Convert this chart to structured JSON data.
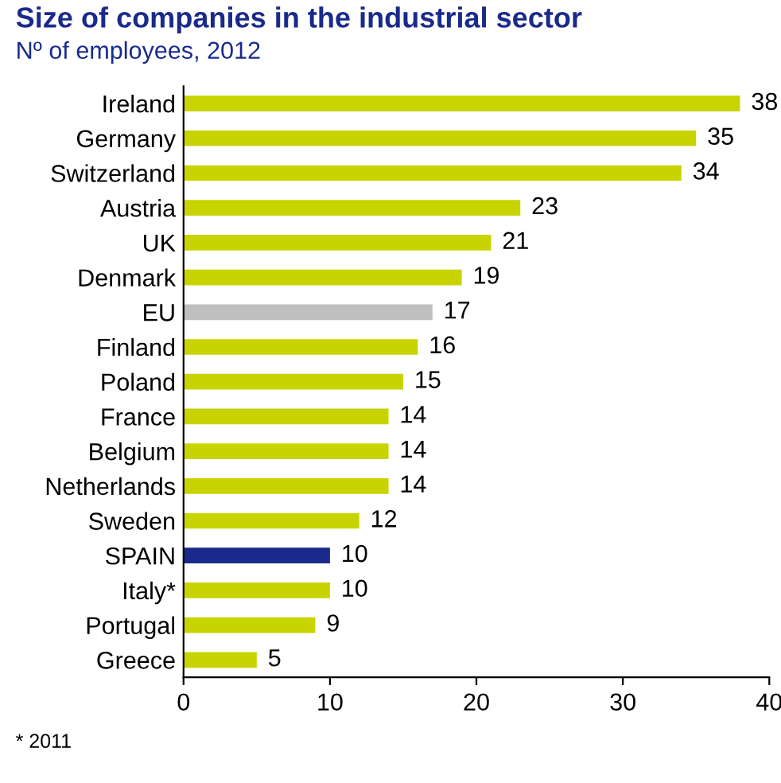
{
  "chart_data": {
    "type": "bar",
    "orientation": "horizontal",
    "title": "Size of companies in the industrial sector",
    "subtitle": "Nº of employees, 2012",
    "categories": [
      "Ireland",
      "Germany",
      "Switzerland",
      "Austria",
      "UK",
      "Denmark",
      "EU",
      "Finland",
      "Poland",
      "France",
      "Belgium",
      "Netherlands",
      "Sweden",
      "SPAIN",
      "Italy*",
      "Portugal",
      "Greece"
    ],
    "values": [
      38,
      35,
      34,
      23,
      21,
      19,
      17,
      16,
      15,
      14,
      14,
      14,
      12,
      10,
      10,
      9,
      5
    ],
    "colors": [
      "#c8d400",
      "#c8d400",
      "#c8d400",
      "#c8d400",
      "#c8d400",
      "#c8d400",
      "#bfbfbf",
      "#c8d400",
      "#c8d400",
      "#c8d400",
      "#c8d400",
      "#c8d400",
      "#c8d400",
      "#1a2a8c",
      "#c8d400",
      "#c8d400",
      "#c8d400"
    ],
    "xlim": [
      0,
      40
    ],
    "xticks": [
      0,
      10,
      20,
      30,
      40
    ],
    "data_labels": true,
    "grid": false,
    "annotations": [
      "* 2011"
    ]
  }
}
